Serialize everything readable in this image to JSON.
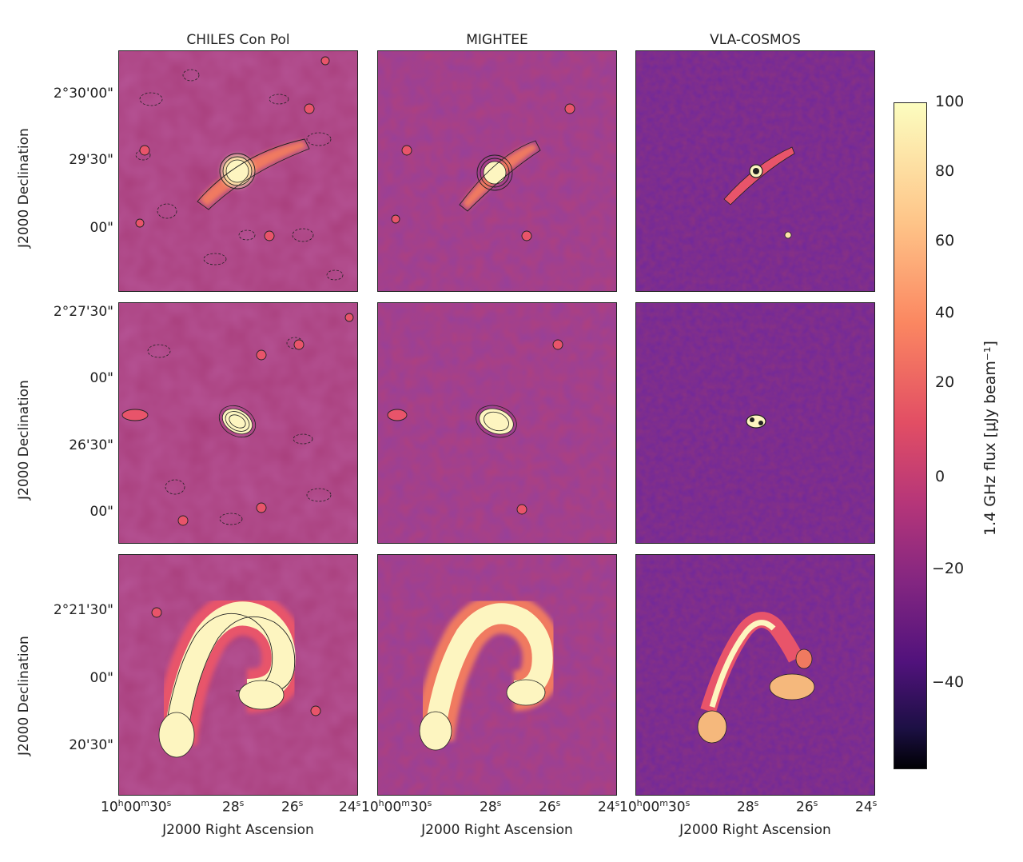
{
  "columns": [
    {
      "title": "CHILES Con Pol"
    },
    {
      "title": "MIGHTEE"
    },
    {
      "title": "VLA-COSMOS"
    }
  ],
  "rows": [
    {
      "ylabel": "J2000 Declination",
      "yticks": [
        "2°30'00\"",
        "29'30\"",
        "00\""
      ]
    },
    {
      "ylabel": "J2000 Declination",
      "yticks": [
        "2°27'30\"",
        "00\"",
        "26'30\"",
        "00\""
      ]
    },
    {
      "ylabel": "J2000 Declination",
      "yticks": [
        "2°21'30\"",
        "00\"",
        "20'30\""
      ]
    }
  ],
  "xaxis": {
    "label": "J2000 Right Ascension",
    "ticks_main": "10",
    "ticks_h": "h",
    "ticks_m_val": "00",
    "ticks_m": "m",
    "ticks_s_val": "30",
    "ticks_s": "s",
    "tick2": "28",
    "tick3": "26",
    "tick4": "24",
    "sec": "s"
  },
  "colorbar": {
    "label": "1.4 GHz flux [μJy beam⁻¹]",
    "ticks": [
      "100",
      "80",
      "60",
      "40",
      "20",
      "0",
      "−20",
      "−40"
    ],
    "colors": [
      "#fcfdbf",
      "#fe9f6d",
      "#de4968",
      "#8c2981",
      "#3b0f70",
      "#000004"
    ]
  },
  "colors": {
    "bg_chiles": "#a43c7b",
    "bg_mightee": "#b8427a",
    "bg_vla": "#8a2f80",
    "bright": "#fdf5c0",
    "mid": "#f07a60",
    "dark": "#4a1768"
  }
}
